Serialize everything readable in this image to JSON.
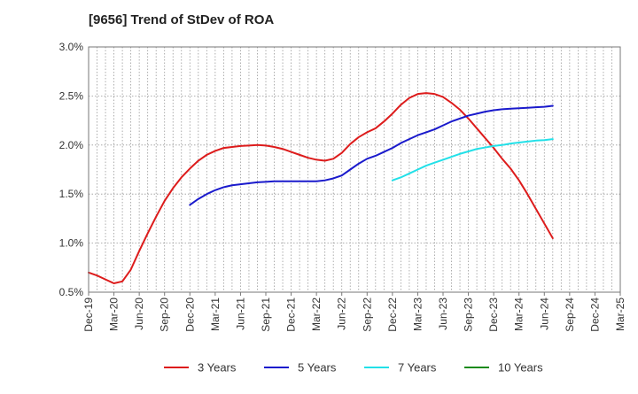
{
  "chart_data": {
    "type": "line",
    "title": "[9656]  Trend of StDev of ROA",
    "xlabel": "",
    "ylabel": "",
    "x_ticks": [
      "Dec-19",
      "Mar-20",
      "Jun-20",
      "Sep-20",
      "Dec-20",
      "Mar-21",
      "Jun-21",
      "Sep-21",
      "Dec-21",
      "Mar-22",
      "Jun-22",
      "Sep-22",
      "Dec-22",
      "Mar-23",
      "Jun-23",
      "Sep-23",
      "Dec-23",
      "Mar-24",
      "Jun-24",
      "Sep-24",
      "Dec-24",
      "Mar-25"
    ],
    "y_ticks": [
      "0.5%",
      "1.0%",
      "1.5%",
      "2.0%",
      "2.5%",
      "3.0%"
    ],
    "ylim": [
      0.5,
      3.0
    ],
    "grid": true,
    "legend_position": "bottom",
    "series": [
      {
        "name": "3 Years",
        "color": "#dd1c1c",
        "start_index": 0,
        "values": [
          0.7,
          0.67,
          0.63,
          0.59,
          0.61,
          0.73,
          0.92,
          1.1,
          1.27,
          1.43,
          1.56,
          1.67,
          1.76,
          1.84,
          1.9,
          1.94,
          1.97,
          1.98,
          1.99,
          1.995,
          2.0,
          1.995,
          1.98,
          1.96,
          1.93,
          1.9,
          1.87,
          1.85,
          1.84,
          1.86,
          1.92,
          2.01,
          2.08,
          2.13,
          2.17,
          2.24,
          2.32,
          2.41,
          2.48,
          2.52,
          2.53,
          2.52,
          2.49,
          2.43,
          2.36,
          2.27,
          2.17,
          2.07,
          1.97,
          1.86,
          1.76,
          1.64,
          1.5,
          1.35,
          1.2,
          1.05
        ]
      },
      {
        "name": "5 Years",
        "color": "#1a1acc",
        "start_index": 12,
        "values": [
          1.39,
          1.45,
          1.5,
          1.54,
          1.57,
          1.59,
          1.6,
          1.61,
          1.62,
          1.625,
          1.63,
          1.63,
          1.63,
          1.63,
          1.63,
          1.63,
          1.64,
          1.66,
          1.69,
          1.75,
          1.81,
          1.86,
          1.89,
          1.93,
          1.97,
          2.02,
          2.06,
          2.1,
          2.13,
          2.16,
          2.2,
          2.24,
          2.27,
          2.3,
          2.32,
          2.34,
          2.355,
          2.365,
          2.37,
          2.375,
          2.38,
          2.385,
          2.39,
          2.4
        ]
      },
      {
        "name": "7 Years",
        "color": "#22e0e8",
        "start_index": 36,
        "values": [
          1.64,
          1.67,
          1.71,
          1.75,
          1.79,
          1.82,
          1.85,
          1.88,
          1.91,
          1.935,
          1.96,
          1.975,
          1.99,
          2.0,
          2.015,
          2.025,
          2.035,
          2.045,
          2.05,
          2.06
        ]
      },
      {
        "name": "10 Years",
        "color": "#1a8a1a",
        "start_index": 0,
        "values": []
      }
    ]
  }
}
